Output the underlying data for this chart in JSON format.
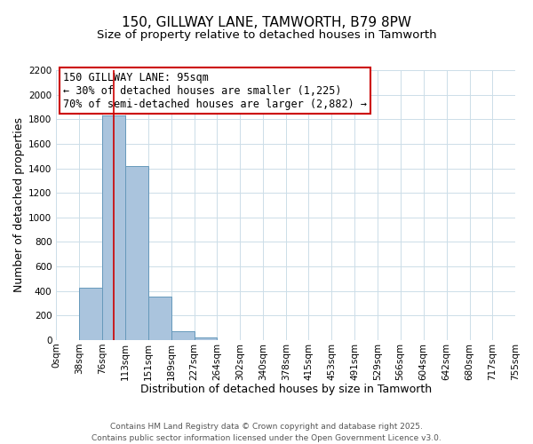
{
  "title": "150, GILLWAY LANE, TAMWORTH, B79 8PW",
  "subtitle": "Size of property relative to detached houses in Tamworth",
  "xlabel": "Distribution of detached houses by size in Tamworth",
  "ylabel": "Number of detached properties",
  "bin_edges": [
    0,
    38,
    76,
    113,
    151,
    189,
    227,
    264,
    302,
    340,
    378,
    415,
    453,
    491,
    529,
    566,
    604,
    642,
    680,
    717,
    755
  ],
  "bin_labels": [
    "0sqm",
    "38sqm",
    "76sqm",
    "113sqm",
    "151sqm",
    "189sqm",
    "227sqm",
    "264sqm",
    "302sqm",
    "340sqm",
    "378sqm",
    "415sqm",
    "453sqm",
    "491sqm",
    "529sqm",
    "566sqm",
    "604sqm",
    "642sqm",
    "680sqm",
    "717sqm",
    "755sqm"
  ],
  "bar_heights": [
    0,
    430,
    1830,
    1415,
    355,
    75,
    22,
    0,
    0,
    0,
    0,
    0,
    0,
    0,
    0,
    0,
    0,
    0,
    0,
    0
  ],
  "bar_color": "#aac4dd",
  "bar_edge_color": "#6699bb",
  "vline_x": 95,
  "vline_color": "#cc0000",
  "annotation_line1": "150 GILLWAY LANE: 95sqm",
  "annotation_line2": "← 30% of detached houses are smaller (1,225)",
  "annotation_line3": "70% of semi-detached houses are larger (2,882) →",
  "annotation_box_color": "#cc0000",
  "ylim": [
    0,
    2200
  ],
  "yticks": [
    0,
    200,
    400,
    600,
    800,
    1000,
    1200,
    1400,
    1600,
    1800,
    2000,
    2200
  ],
  "background_color": "#ffffff",
  "grid_color": "#ccdde8",
  "footer1": "Contains HM Land Registry data © Crown copyright and database right 2025.",
  "footer2": "Contains public sector information licensed under the Open Government Licence v3.0.",
  "title_fontsize": 11,
  "subtitle_fontsize": 9.5,
  "axis_label_fontsize": 9,
  "tick_fontsize": 7.5,
  "annotation_fontsize": 8.5,
  "footer_fontsize": 6.5
}
